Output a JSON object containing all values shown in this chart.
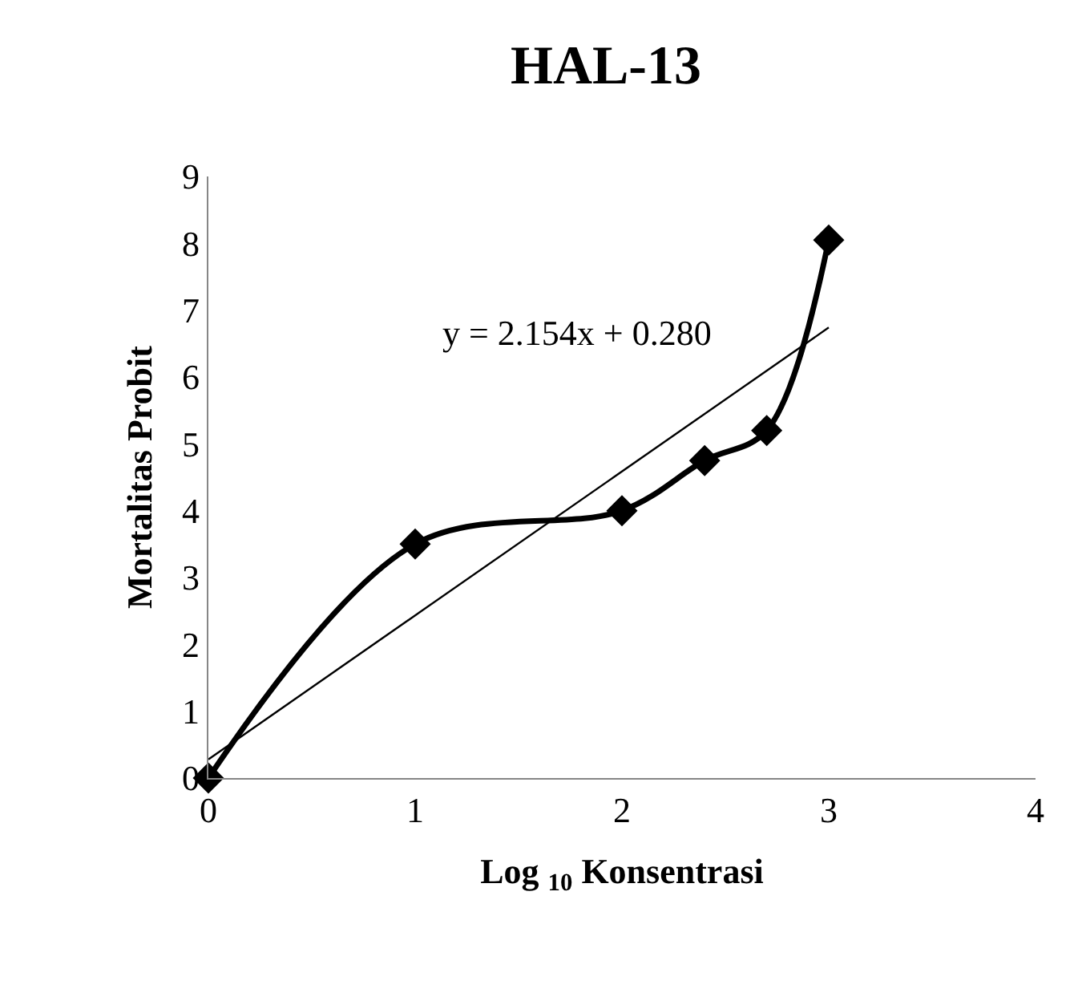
{
  "chart_data": {
    "type": "line",
    "title": "HAL-13",
    "xlabel": "Log $_{10}$ Konsentrasi",
    "ylabel": "Mortalitas Probit",
    "x": [
      0,
      1,
      2,
      2.4,
      2.7,
      3
    ],
    "series": [
      {
        "color": "#000000",
        "values": [
          0,
          3.5,
          4.0,
          4.75,
          5.2,
          8.05
        ],
        "marker": "diamond"
      },
      {
        "color": "#000000",
        "x": [
          0,
          3
        ],
        "values": [
          0.28,
          6.74
        ],
        "marker": "none"
      }
    ],
    "annotations": [
      "y = 2.154x + 0.280"
    ],
    "xlim": [
      0,
      4
    ],
    "xticks": [
      0,
      1,
      2,
      3,
      4
    ],
    "ylim": [
      0,
      9
    ],
    "yticks": [
      0,
      1,
      2,
      3,
      4,
      5,
      6,
      7,
      8,
      9
    ]
  }
}
